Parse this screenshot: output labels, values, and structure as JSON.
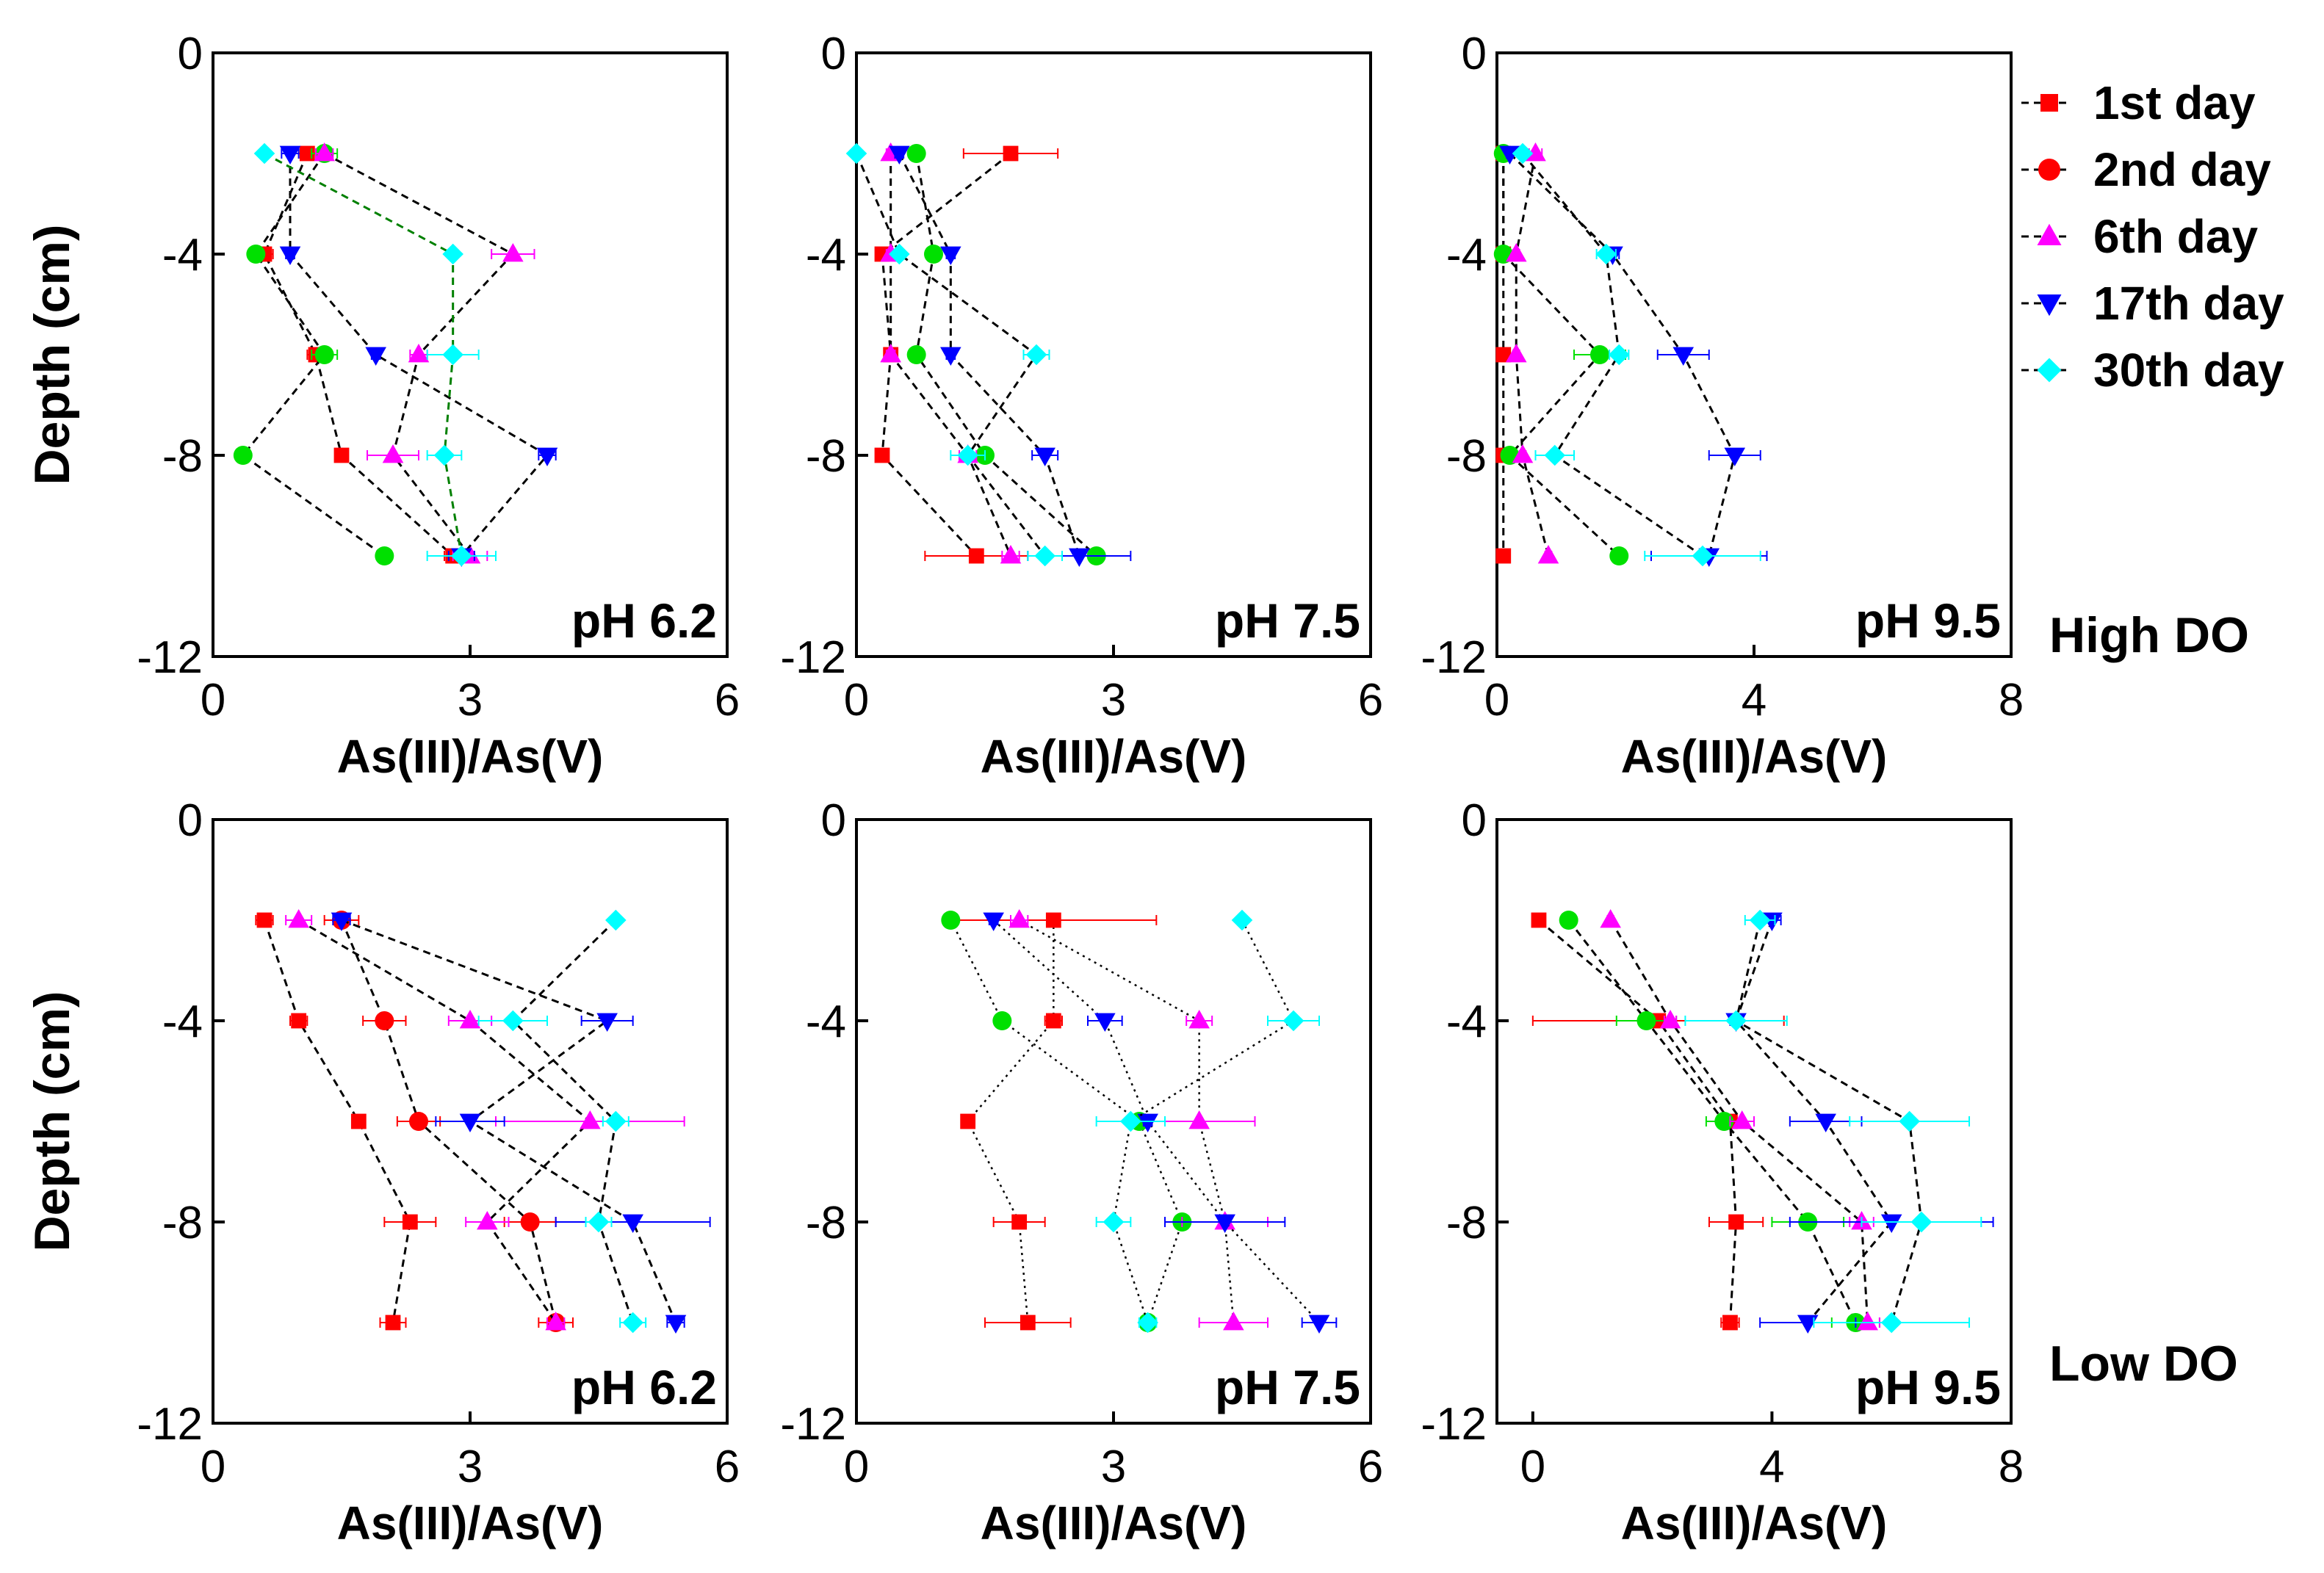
{
  "figure": {
    "ylabel": "Depth (cm)",
    "xlabel": "As(III)/As(V)",
    "row_labels": [
      "High DO",
      "Low DO"
    ],
    "legend": [
      {
        "label": "1st day",
        "marker": "square",
        "color": "#ff0000"
      },
      {
        "label": "2nd day",
        "marker": "circle",
        "color": "#ff0000"
      },
      {
        "label": "6th day",
        "marker": "triangle-up",
        "color": "#ff00ff"
      },
      {
        "label": "17th day",
        "marker": "triangle-down",
        "color": "#0000ff"
      },
      {
        "label": "30th day",
        "marker": "diamond",
        "color": "#00ffff"
      }
    ]
  },
  "chart_data": [
    {
      "type": "scatter",
      "panel": "pH 6.2",
      "row": "High DO",
      "xlim": [
        0,
        6
      ],
      "ylim": [
        -12,
        0
      ],
      "xticks": [
        "0",
        "3",
        "6"
      ],
      "yticks": [
        "0",
        "-4",
        "-8",
        "-12"
      ],
      "y": [
        -2,
        -4,
        -6,
        -8,
        -10
      ],
      "series": [
        {
          "marker": "square",
          "color": "#ff0000",
          "x": [
            1.1,
            0.6,
            1.2,
            1.5,
            2.8
          ],
          "err": [
            0.1,
            0.1,
            0.1,
            0.05,
            0.1
          ]
        },
        {
          "marker": "circle",
          "color": "#00e000",
          "x": [
            1.3,
            0.5,
            1.3,
            0.35,
            2.0
          ],
          "err": [
            0.15,
            0.05,
            0.15,
            0.05,
            0.05
          ]
        },
        {
          "marker": "triangle-up",
          "color": "#ff00ff",
          "x": [
            1.3,
            3.5,
            2.4,
            2.1,
            3.0
          ],
          "err": [
            0.1,
            0.25,
            0.1,
            0.3,
            0.2
          ]
        },
        {
          "marker": "triangle-down",
          "color": "#0000ff",
          "x": [
            0.9,
            0.9,
            1.9,
            3.9,
            2.9
          ],
          "err": [
            0.1,
            0.05,
            0.05,
            0.1,
            0.15
          ]
        },
        {
          "marker": "diamond",
          "color": "#00ffff",
          "x": [
            0.6,
            2.8,
            2.8,
            2.7,
            2.9
          ],
          "err": [
            0.05,
            0.05,
            0.3,
            0.2,
            0.4
          ]
        }
      ]
    },
    {
      "type": "scatter",
      "panel": "pH 7.5",
      "row": "High DO",
      "xlim": [
        0,
        6
      ],
      "ylim": [
        -12,
        0
      ],
      "xticks": [
        "0",
        "3",
        "6"
      ],
      "yticks": [
        "0",
        "-4",
        "-8",
        "-12"
      ],
      "y": [
        -2,
        -4,
        -6,
        -8,
        -10
      ],
      "series": [
        {
          "marker": "square",
          "color": "#ff0000",
          "x": [
            1.8,
            0.3,
            0.4,
            0.3,
            1.4
          ],
          "err": [
            0.55,
            0.05,
            0.05,
            0.05,
            0.6
          ]
        },
        {
          "marker": "circle",
          "color": "#00e000",
          "x": [
            0.7,
            0.9,
            0.7,
            1.5,
            2.8
          ],
          "err": [
            0.05,
            0.05,
            0.05,
            0.05,
            0.05
          ]
        },
        {
          "marker": "triangle-up",
          "color": "#ff00ff",
          "x": [
            0.4,
            0.4,
            0.4,
            1.3,
            1.8
          ],
          "err": [
            0.05,
            0.05,
            0.05,
            0.1,
            0.1
          ]
        },
        {
          "marker": "triangle-down",
          "color": "#0000ff",
          "x": [
            0.5,
            1.1,
            1.1,
            2.2,
            2.6
          ],
          "err": [
            0.05,
            0.05,
            0.05,
            0.15,
            0.6
          ]
        },
        {
          "marker": "diamond",
          "color": "#00ffff",
          "x": [
            0.0,
            0.5,
            2.1,
            1.3,
            2.2
          ],
          "err": [
            0.05,
            0.05,
            0.15,
            0.2,
            0.2
          ]
        }
      ]
    },
    {
      "type": "scatter",
      "panel": "pH 9.5",
      "row": "High DO",
      "xlim": [
        0,
        8
      ],
      "ylim": [
        -12,
        0
      ],
      "xticks": [
        "0",
        "4",
        "8"
      ],
      "yticks": [
        "0",
        "-4",
        "-8",
        "-12"
      ],
      "y": [
        -2,
        -4,
        -6,
        -8,
        -10
      ],
      "series": [
        {
          "marker": "square",
          "color": "#ff0000",
          "x": [
            0.1,
            0.1,
            0.1,
            0.1,
            0.1
          ],
          "err": [
            0.05,
            0.05,
            0.05,
            0.05,
            0.05
          ]
        },
        {
          "marker": "circle",
          "color": "#00e000",
          "x": [
            0.1,
            0.1,
            1.6,
            0.2,
            1.9
          ],
          "err": [
            0.05,
            0.05,
            0.4,
            0.1,
            0.1
          ]
        },
        {
          "marker": "triangle-up",
          "color": "#ff00ff",
          "x": [
            0.6,
            0.3,
            0.3,
            0.4,
            0.8
          ],
          "err": [
            0.1,
            0.05,
            0.05,
            0.05,
            0.05
          ]
        },
        {
          "marker": "triangle-down",
          "color": "#0000ff",
          "x": [
            0.2,
            1.8,
            2.9,
            3.7,
            3.3
          ],
          "err": [
            0.05,
            0.1,
            0.4,
            0.4,
            0.9
          ]
        },
        {
          "marker": "diamond",
          "color": "#00ffff",
          "x": [
            0.4,
            1.7,
            1.9,
            0.9,
            3.2
          ],
          "err": [
            0.05,
            0.15,
            0.15,
            0.3,
            0.9
          ]
        }
      ]
    },
    {
      "type": "scatter",
      "panel": "pH 6.2",
      "row": "Low DO",
      "xlim": [
        0,
        6
      ],
      "ylim": [
        -12,
        0
      ],
      "xticks": [
        "0",
        "3",
        "6"
      ],
      "yticks": [
        "0",
        "-4",
        "-8",
        "-12"
      ],
      "y": [
        -2,
        -4,
        -6,
        -8,
        -10
      ],
      "series": [
        {
          "marker": "square",
          "color": "#ff0000",
          "x": [
            0.6,
            1.0,
            1.7,
            2.3,
            2.1
          ],
          "err": [
            0.1,
            0.1,
            0.05,
            0.3,
            0.15
          ]
        },
        {
          "marker": "circle",
          "color": "#ff0000",
          "x": [
            1.5,
            2.0,
            2.4,
            3.7,
            4.0
          ],
          "err": [
            0.2,
            0.25,
            0.25,
            0.3,
            0.2
          ]
        },
        {
          "marker": "triangle-up",
          "color": "#ff00ff",
          "x": [
            1.0,
            3.0,
            4.4,
            3.2,
            4.0
          ],
          "err": [
            0.15,
            0.25,
            1.1,
            0.25,
            0.1
          ]
        },
        {
          "marker": "triangle-down",
          "color": "#0000ff",
          "x": [
            1.5,
            4.6,
            3.0,
            4.9,
            5.4
          ],
          "err": [
            0.1,
            0.3,
            0.4,
            0.9,
            0.1
          ]
        },
        {
          "marker": "diamond",
          "color": "#00ffff",
          "x": [
            4.7,
            3.5,
            4.7,
            4.5,
            4.9
          ],
          "err": [
            0.05,
            0.4,
            0.15,
            0.15,
            0.15
          ]
        }
      ]
    },
    {
      "type": "scatter",
      "panel": "pH 7.5",
      "row": "Low DO",
      "xlim": [
        0,
        6
      ],
      "ylim": [
        -12,
        0
      ],
      "xticks": [
        "0",
        "3",
        "6"
      ],
      "yticks": [
        "0",
        "-4",
        "-8",
        "-12"
      ],
      "y": [
        -2,
        -4,
        -6,
        -8,
        -10
      ],
      "series": [
        {
          "marker": "square",
          "color": "#ff0000",
          "x": [
            2.3,
            2.3,
            1.3,
            1.9,
            2.0
          ],
          "err": [
            1.2,
            0.1,
            0.05,
            0.3,
            0.5
          ]
        },
        {
          "marker": "circle",
          "color": "#00e000",
          "x": [
            1.1,
            1.7,
            3.3,
            3.8,
            3.4
          ],
          "err": [
            0.05,
            0.05,
            0.05,
            0.05,
            0.05
          ]
        },
        {
          "marker": "triangle-up",
          "color": "#ff00ff",
          "x": [
            1.9,
            4.0,
            4.0,
            4.3,
            4.4
          ],
          "err": [
            0.1,
            0.15,
            0.65,
            0.5,
            0.4
          ]
        },
        {
          "marker": "triangle-down",
          "color": "#0000ff",
          "x": [
            1.6,
            2.9,
            3.4,
            4.3,
            5.4
          ],
          "err": [
            0.05,
            0.2,
            0.05,
            0.7,
            0.2
          ]
        },
        {
          "marker": "diamond",
          "color": "#00ffff",
          "x": [
            4.5,
            5.1,
            3.2,
            3.0,
            3.4
          ],
          "err": [
            0.05,
            0.3,
            0.4,
            0.2,
            0.1
          ]
        }
      ]
    },
    {
      "type": "scatter",
      "panel": "pH 9.5",
      "row": "Low DO",
      "xlim": [
        -0.6,
        8
      ],
      "ylim": [
        -12,
        0
      ],
      "xticks": [
        "0",
        "4",
        "8"
      ],
      "yticks": [
        "0",
        "-4",
        "-8",
        "-12"
      ],
      "y": [
        -2,
        -4,
        -6,
        -8,
        -10
      ],
      "series": [
        {
          "marker": "square",
          "color": "#ff0000",
          "x": [
            0.1,
            2.1,
            3.3,
            3.4,
            3.3
          ],
          "err": [
            0.05,
            2.1,
            0.2,
            0.45,
            0.15
          ]
        },
        {
          "marker": "circle",
          "color": "#00e000",
          "x": [
            0.6,
            1.9,
            3.2,
            4.6,
            5.4
          ],
          "err": [
            0.05,
            0.5,
            0.3,
            0.6,
            0.4
          ]
        },
        {
          "marker": "triangle-up",
          "color": "#ff00ff",
          "x": [
            1.3,
            2.3,
            3.5,
            5.5,
            5.6
          ],
          "err": [
            0.05,
            0.1,
            0.2,
            0.2,
            0.2
          ]
        },
        {
          "marker": "triangle-down",
          "color": "#0000ff",
          "x": [
            4.0,
            3.4,
            4.9,
            6.0,
            4.6
          ],
          "err": [
            0.15,
            0.1,
            0.6,
            1.7,
            0.8
          ]
        },
        {
          "marker": "diamond",
          "color": "#00ffff",
          "x": [
            3.8,
            3.4,
            6.3,
            6.5,
            6.0
          ],
          "err": [
            0.25,
            0.85,
            1.0,
            1.0,
            1.3
          ]
        }
      ]
    }
  ]
}
